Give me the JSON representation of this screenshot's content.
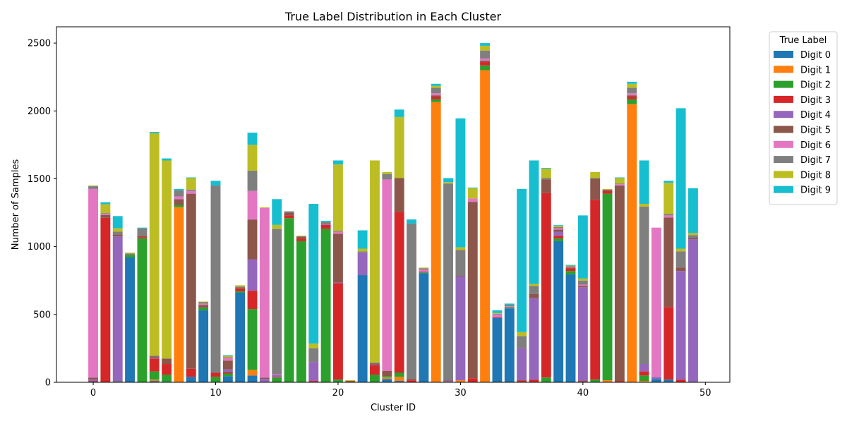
{
  "chart_data": {
    "type": "bar",
    "stacked": true,
    "title": "True Label Distribution in Each Cluster",
    "xlabel": "Cluster ID",
    "ylabel": "Number of Samples",
    "xlim": [
      -3,
      52
    ],
    "ylim": [
      0,
      2620
    ],
    "xticks": [
      0,
      10,
      20,
      30,
      40,
      50
    ],
    "yticks": [
      0,
      500,
      1000,
      1500,
      2000,
      2500
    ],
    "grid": false,
    "legend": {
      "title": "True Label",
      "placement": "outside-right-top"
    },
    "categories": [
      0,
      1,
      2,
      3,
      4,
      5,
      6,
      7,
      8,
      9,
      10,
      11,
      12,
      13,
      14,
      15,
      16,
      17,
      18,
      19,
      20,
      21,
      22,
      23,
      24,
      25,
      26,
      27,
      28,
      29,
      30,
      31,
      32,
      33,
      34,
      35,
      36,
      37,
      38,
      39,
      40,
      41,
      42,
      43,
      44,
      45,
      46,
      47,
      48,
      49
    ],
    "series": [
      {
        "name": "Digit 0",
        "color": "#1f77b4",
        "values": [
          5,
          2,
          0,
          920,
          0,
          10,
          5,
          0,
          40,
          530,
          0,
          45,
          660,
          50,
          0,
          0,
          0,
          0,
          0,
          0,
          0,
          0,
          790,
          0,
          25,
          10,
          0,
          805,
          0,
          0,
          0,
          0,
          0,
          475,
          545,
          0,
          0,
          0,
          1040,
          795,
          0,
          0,
          0,
          0,
          0,
          0,
          25,
          20,
          0,
          0
        ]
      },
      {
        "name": "Digit 1",
        "color": "#ff7f0e",
        "values": [
          0,
          0,
          0,
          0,
          0,
          10,
          0,
          1290,
          0,
          0,
          0,
          0,
          0,
          40,
          0,
          0,
          0,
          0,
          0,
          0,
          0,
          0,
          0,
          0,
          10,
          30,
          0,
          0,
          2065,
          0,
          15,
          0,
          2300,
          0,
          0,
          0,
          0,
          0,
          0,
          0,
          0,
          0,
          15,
          0,
          2050,
          10,
          0,
          0,
          0,
          0
        ]
      },
      {
        "name": "Digit 2",
        "color": "#2ca02c",
        "values": [
          0,
          0,
          5,
          20,
          1060,
          60,
          50,
          15,
          0,
          20,
          40,
          20,
          10,
          450,
          0,
          35,
          1210,
          1040,
          0,
          1130,
          20,
          0,
          0,
          55,
          10,
          30,
          0,
          5,
          20,
          0,
          0,
          0,
          35,
          0,
          5,
          5,
          0,
          35,
          20,
          25,
          5,
          20,
          1375,
          0,
          35,
          40,
          0,
          0,
          0,
          0
        ]
      },
      {
        "name": "Digit 3",
        "color": "#d62728",
        "values": [
          5,
          1210,
          0,
          0,
          10,
          95,
          80,
          0,
          60,
          0,
          30,
          10,
          20,
          135,
          0,
          5,
          20,
          20,
          10,
          30,
          710,
          5,
          0,
          70,
          0,
          1185,
          15,
          5,
          20,
          0,
          0,
          30,
          25,
          5,
          0,
          10,
          20,
          1360,
          20,
          20,
          5,
          1325,
          20,
          10,
          20,
          30,
          0,
          535,
          20,
          0
        ]
      },
      {
        "name": "Digit 4",
        "color": "#9467bd",
        "values": [
          10,
          0,
          1070,
          0,
          0,
          5,
          0,
          0,
          0,
          0,
          0,
          20,
          0,
          230,
          25,
          15,
          0,
          0,
          140,
          5,
          5,
          0,
          165,
          5,
          0,
          0,
          0,
          0,
          0,
          10,
          765,
          0,
          0,
          0,
          0,
          235,
          600,
          0,
          30,
          0,
          690,
          0,
          0,
          0,
          0,
          55,
          15,
          0,
          800,
          1055
        ]
      },
      {
        "name": "Digit 5",
        "color": "#8c564b",
        "values": [
          15,
          20,
          15,
          5,
          10,
          10,
          40,
          45,
          1290,
          20,
          0,
          65,
          10,
          295,
          10,
          0,
          20,
          15,
          0,
          5,
          360,
          5,
          0,
          10,
          40,
          250,
          10,
          0,
          10,
          5,
          5,
          1300,
          10,
          0,
          5,
          0,
          30,
          100,
          15,
          5,
          10,
          155,
          10,
          1440,
          10,
          0,
          0,
          660,
          25,
          10
        ]
      },
      {
        "name": "Digit 6",
        "color": "#e377c2",
        "values": [
          1390,
          10,
          0,
          0,
          0,
          0,
          0,
          20,
          20,
          10,
          0,
          20,
          0,
          210,
          1250,
          5,
          0,
          0,
          0,
          0,
          15,
          0,
          0,
          0,
          1410,
          0,
          0,
          15,
          15,
          0,
          0,
          25,
          15,
          20,
          5,
          0,
          0,
          0,
          10,
          5,
          10,
          0,
          0,
          10,
          15,
          0,
          1100,
          15,
          0,
          0
        ]
      },
      {
        "name": "Digit 7",
        "color": "#7f7f7f",
        "values": [
          20,
          5,
          20,
          5,
          55,
          5,
          0,
          45,
          10,
          10,
          1380,
          5,
          5,
          150,
          0,
          1070,
          10,
          0,
          100,
          10,
          5,
          0,
          10,
          5,
          40,
          0,
          1145,
          10,
          40,
          1450,
          190,
          0,
          60,
          5,
          10,
          90,
          60,
          10,
          10,
          5,
          30,
          5,
          0,
          5,
          40,
          1160,
          0,
          10,
          120,
          20
        ]
      },
      {
        "name": "Digit 8",
        "color": "#bcbd22",
        "values": [
          5,
          65,
          25,
          5,
          0,
          1640,
          1460,
          0,
          85,
          5,
          0,
          10,
          10,
          190,
          5,
          30,
          0,
          5,
          35,
          0,
          490,
          5,
          20,
          1490,
          15,
          450,
          0,
          5,
          15,
          10,
          20,
          75,
          35,
          5,
          0,
          30,
          15,
          70,
          10,
          5,
          15,
          45,
          5,
          40,
          30,
          20,
          0,
          230,
          20,
          15
        ]
      },
      {
        "name": "Digit 9",
        "color": "#17becf",
        "values": [
          0,
          15,
          90,
          0,
          5,
          10,
          15,
          10,
          5,
          0,
          35,
          5,
          0,
          90,
          0,
          190,
          0,
          0,
          1030,
          10,
          30,
          0,
          135,
          0,
          0,
          55,
          30,
          0,
          15,
          30,
          950,
          5,
          20,
          20,
          10,
          1055,
          910,
          5,
          5,
          5,
          465,
          0,
          0,
          5,
          15,
          320,
          0,
          15,
          1035,
          330
        ]
      }
    ]
  }
}
